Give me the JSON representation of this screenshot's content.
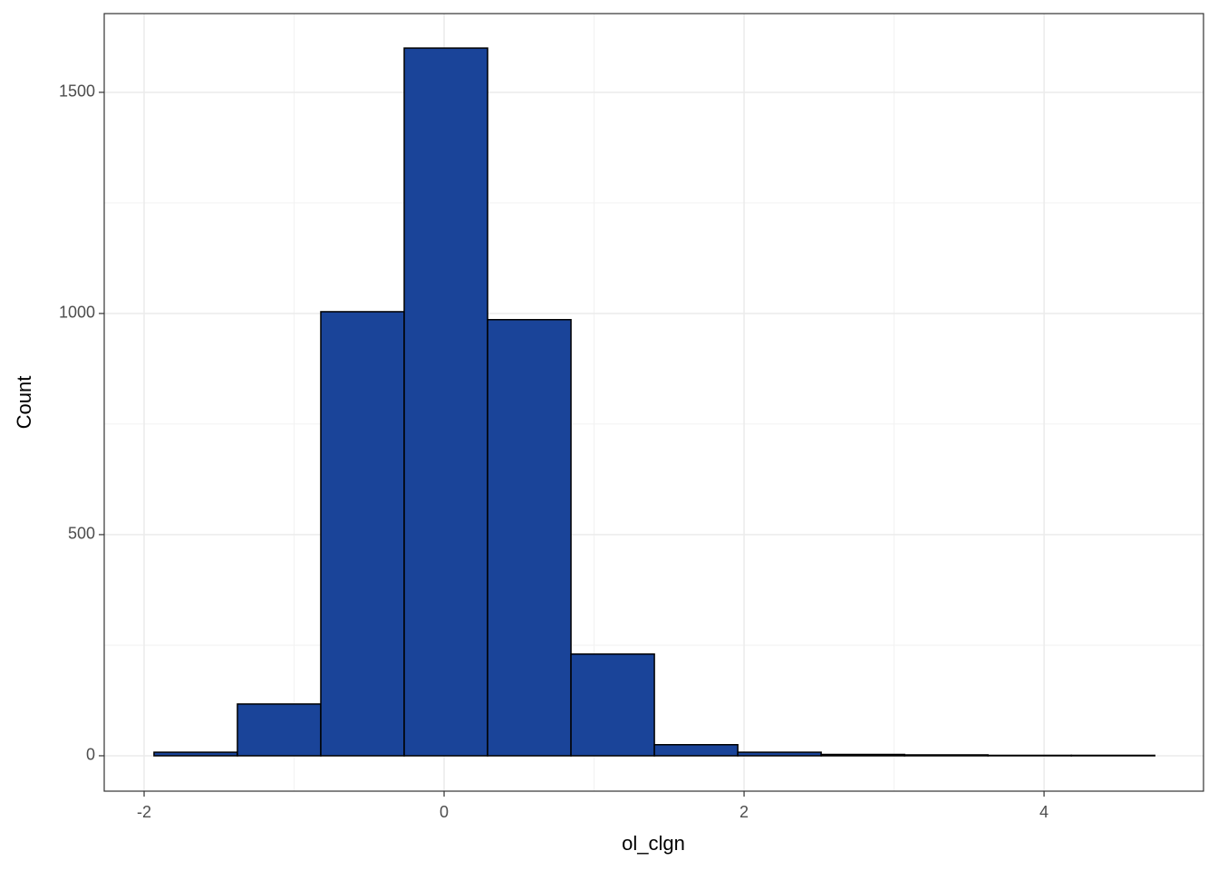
{
  "chart_data": {
    "type": "histogram",
    "x_label": "ol_clgn",
    "y_label": "Count",
    "bins": [
      -1.934,
      -1.378,
      -0.822,
      -0.266,
      0.29,
      0.846,
      1.402,
      1.958,
      2.514,
      3.07,
      3.626,
      4.182,
      4.738
    ],
    "values": [
      8,
      117,
      1004,
      1600,
      986,
      230,
      25,
      8,
      3,
      2,
      1,
      1
    ],
    "color": "#1a4499",
    "edge_color": "#000000",
    "xlim": [
      -2.266,
      5.063
    ],
    "ylim": [
      -80,
      1678
    ],
    "xticks": [
      -2,
      0,
      2,
      4
    ],
    "yticks": [
      0,
      500,
      1000,
      1500
    ],
    "grid": true
  }
}
